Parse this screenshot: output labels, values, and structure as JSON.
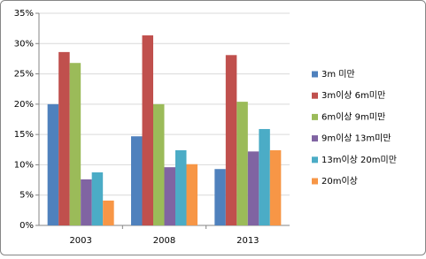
{
  "chart_data": {
    "type": "bar",
    "categories": [
      "2003",
      "2008",
      "2013"
    ],
    "series": [
      {
        "name": "3m 미만",
        "color": "#4f81bd",
        "values": [
          20.0,
          14.7,
          9.3
        ]
      },
      {
        "name": "3m이상 6m미만",
        "color": "#c0504d",
        "values": [
          28.6,
          31.35,
          28.1
        ]
      },
      {
        "name": "6m이상 9m미만",
        "color": "#9bbb59",
        "values": [
          26.8,
          20.0,
          20.4
        ]
      },
      {
        "name": "9m이상 13m미만",
        "color": "#8064a2",
        "values": [
          7.6,
          9.6,
          12.2
        ]
      },
      {
        "name": "13m이상 20m미만",
        "color": "#4bacc6",
        "values": [
          8.75,
          12.4,
          15.9
        ]
      },
      {
        "name": "20m이상",
        "color": "#f79646",
        "values": [
          4.1,
          10.1,
          12.4
        ]
      }
    ],
    "ylim": [
      0,
      35
    ],
    "yticks": [
      {
        "value": 0,
        "label": "0%"
      },
      {
        "value": 5,
        "label": "5%"
      },
      {
        "value": 10,
        "label": "10%"
      },
      {
        "value": 15,
        "label": "15%"
      },
      {
        "value": 20,
        "label": "20%"
      },
      {
        "value": 25,
        "label": "25%"
      },
      {
        "value": 30,
        "label": "30%"
      },
      {
        "value": 35,
        "label": "35%"
      }
    ],
    "grid": true,
    "legend": "right"
  }
}
